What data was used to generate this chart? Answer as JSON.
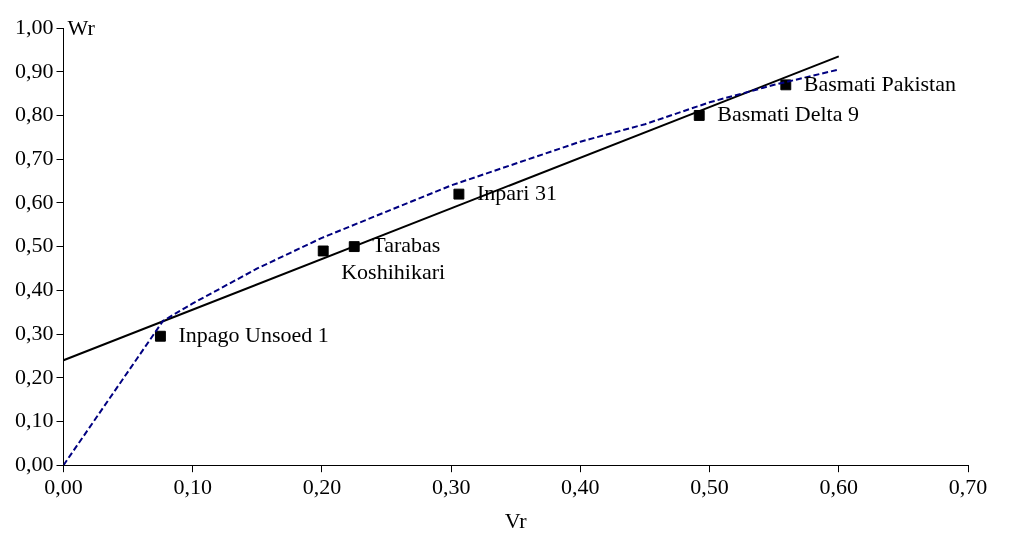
{
  "chart_data": {
    "type": "scatter",
    "xlabel": "Vr",
    "ylabel": "Wr",
    "grid": false,
    "legend": false,
    "xlim": [
      0,
      0.7
    ],
    "ylim": [
      0,
      1
    ],
    "xticks": [
      {
        "value": 0,
        "label": "0,00"
      },
      {
        "value": 0.1,
        "label": "0,10"
      },
      {
        "value": 0.2,
        "label": "0,20"
      },
      {
        "value": 0.3,
        "label": "0,30"
      },
      {
        "value": 0.4,
        "label": "0,40"
      },
      {
        "value": 0.5,
        "label": "0,50"
      },
      {
        "value": 0.6,
        "label": "0,60"
      },
      {
        "value": 0.7,
        "label": "0,70"
      }
    ],
    "yticks": [
      {
        "value": 0,
        "label": "0,00"
      },
      {
        "value": 0.1,
        "label": "0,10"
      },
      {
        "value": 0.2,
        "label": "0,20"
      },
      {
        "value": 0.3,
        "label": "0,30"
      },
      {
        "value": 0.4,
        "label": "0,40"
      },
      {
        "value": 0.5,
        "label": "0,50"
      },
      {
        "value": 0.6,
        "label": "0,60"
      },
      {
        "value": 0.7,
        "label": "0,70"
      },
      {
        "value": 0.8,
        "label": "0,80"
      },
      {
        "value": 0.9,
        "label": "0,90"
      },
      {
        "value": 1,
        "label": "1,00"
      }
    ],
    "series": [
      {
        "type": "line",
        "color": "#000080",
        "line_style": "dashed",
        "marker": "none",
        "x": [
          0,
          0.077,
          0.1,
          0.15,
          0.2,
          0.25,
          0.3,
          0.35,
          0.4,
          0.45,
          0.5,
          0.55,
          0.6
        ],
        "values": [
          0,
          0.33,
          0.37,
          0.45,
          0.52,
          0.58,
          0.64,
          0.69,
          0.74,
          0.78,
          0.83,
          0.87,
          0.905
        ]
      },
      {
        "type": "line",
        "color": "#000000",
        "line_style": "solid",
        "marker": "none",
        "x": [
          0,
          0.6
        ],
        "values": [
          0.24,
          0.935
        ]
      },
      {
        "type": "scatter",
        "color": "#000000",
        "marker": "square",
        "x": [
          0.075,
          0.201,
          0.225,
          0.306,
          0.492,
          0.559
        ],
        "values": [
          0.295,
          0.49,
          0.5,
          0.62,
          0.8,
          0.87
        ]
      }
    ],
    "annotations": [
      {
        "text": "Inpago Unsoed 1",
        "x": 0.075,
        "y": 0.295
      },
      {
        "text": "Tarabas",
        "x": 0.225,
        "y": 0.5
      },
      {
        "text": "Koshihikari",
        "x": 0.201,
        "y": 0.49
      },
      {
        "text": "Inpari 31",
        "x": 0.306,
        "y": 0.62
      },
      {
        "text": "Basmati Delta 9",
        "x": 0.492,
        "y": 0.8
      },
      {
        "text": "Basmati Pakistan",
        "x": 0.559,
        "y": 0.87
      }
    ]
  }
}
